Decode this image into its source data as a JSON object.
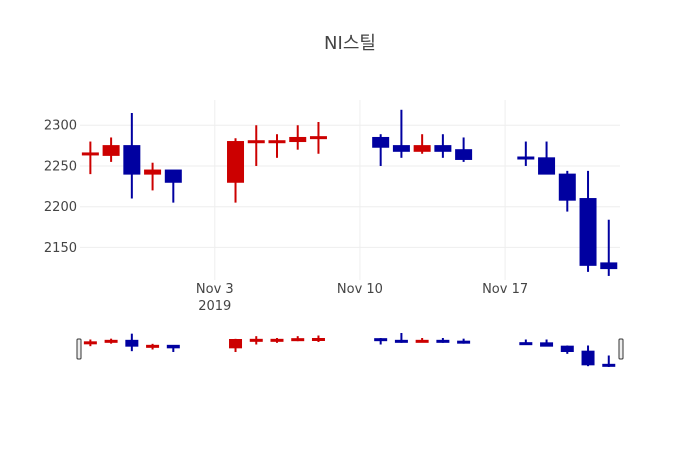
{
  "chart_data": {
    "type": "candlestick",
    "title": "NI스틸",
    "xlabel": "",
    "ylabel": "",
    "ylim": [
      2110,
      2331
    ],
    "xlim": [
      "2019-10-27T12:00",
      "2019-11-22T13:00"
    ],
    "yticks": [
      2150,
      2200,
      2250,
      2300
    ],
    "xticks": [
      {
        "date": "2019-11-03",
        "label": "Nov 3",
        "sublabel": "2019"
      },
      {
        "date": "2019-11-10",
        "label": "Nov 10"
      },
      {
        "date": "2019-11-17",
        "label": "Nov 17"
      }
    ],
    "grid": true,
    "rangeslider": true,
    "colors": {
      "increasing": "#cc0000",
      "decreasing": "#0000a0"
    },
    "candles": [
      {
        "date": "2019-10-28",
        "open": 2264,
        "high": 2280,
        "low": 2240,
        "close": 2266
      },
      {
        "date": "2019-10-29",
        "open": 2263,
        "high": 2285,
        "low": 2255,
        "close": 2275
      },
      {
        "date": "2019-10-30",
        "open": 2275,
        "high": 2315,
        "low": 2210,
        "close": 2240
      },
      {
        "date": "2019-10-31",
        "open": 2240,
        "high": 2254,
        "low": 2220,
        "close": 2245
      },
      {
        "date": "2019-11-01",
        "open": 2245,
        "high": 2245,
        "low": 2205,
        "close": 2230
      },
      {
        "date": "2019-11-04",
        "open": 2230,
        "high": 2284,
        "low": 2205,
        "close": 2280
      },
      {
        "date": "2019-11-05",
        "open": 2279,
        "high": 2300,
        "low": 2250,
        "close": 2281
      },
      {
        "date": "2019-11-06",
        "open": 2279,
        "high": 2289,
        "low": 2260,
        "close": 2281
      },
      {
        "date": "2019-11-07",
        "open": 2280,
        "high": 2300,
        "low": 2270,
        "close": 2285
      },
      {
        "date": "2019-11-08",
        "open": 2284,
        "high": 2304,
        "low": 2265,
        "close": 2286
      },
      {
        "date": "2019-11-11",
        "open": 2285,
        "high": 2289,
        "low": 2250,
        "close": 2273
      },
      {
        "date": "2019-11-12",
        "open": 2275,
        "high": 2319,
        "low": 2260,
        "close": 2268
      },
      {
        "date": "2019-11-13",
        "open": 2268,
        "high": 2289,
        "low": 2265,
        "close": 2275
      },
      {
        "date": "2019-11-14",
        "open": 2275,
        "high": 2289,
        "low": 2260,
        "close": 2268
      },
      {
        "date": "2019-11-15",
        "open": 2270,
        "high": 2285,
        "low": 2255,
        "close": 2258
      },
      {
        "date": "2019-11-18",
        "open": 2261,
        "high": 2280,
        "low": 2250,
        "close": 2259
      },
      {
        "date": "2019-11-19",
        "open": 2260,
        "high": 2280,
        "low": 2240,
        "close": 2240
      },
      {
        "date": "2019-11-20",
        "open": 2240,
        "high": 2244,
        "low": 2194,
        "close": 2208
      },
      {
        "date": "2019-11-21",
        "open": 2210,
        "high": 2244,
        "low": 2120,
        "close": 2128
      },
      {
        "date": "2019-11-22",
        "open": 2131,
        "high": 2184,
        "low": 2115,
        "close": 2124
      }
    ]
  }
}
